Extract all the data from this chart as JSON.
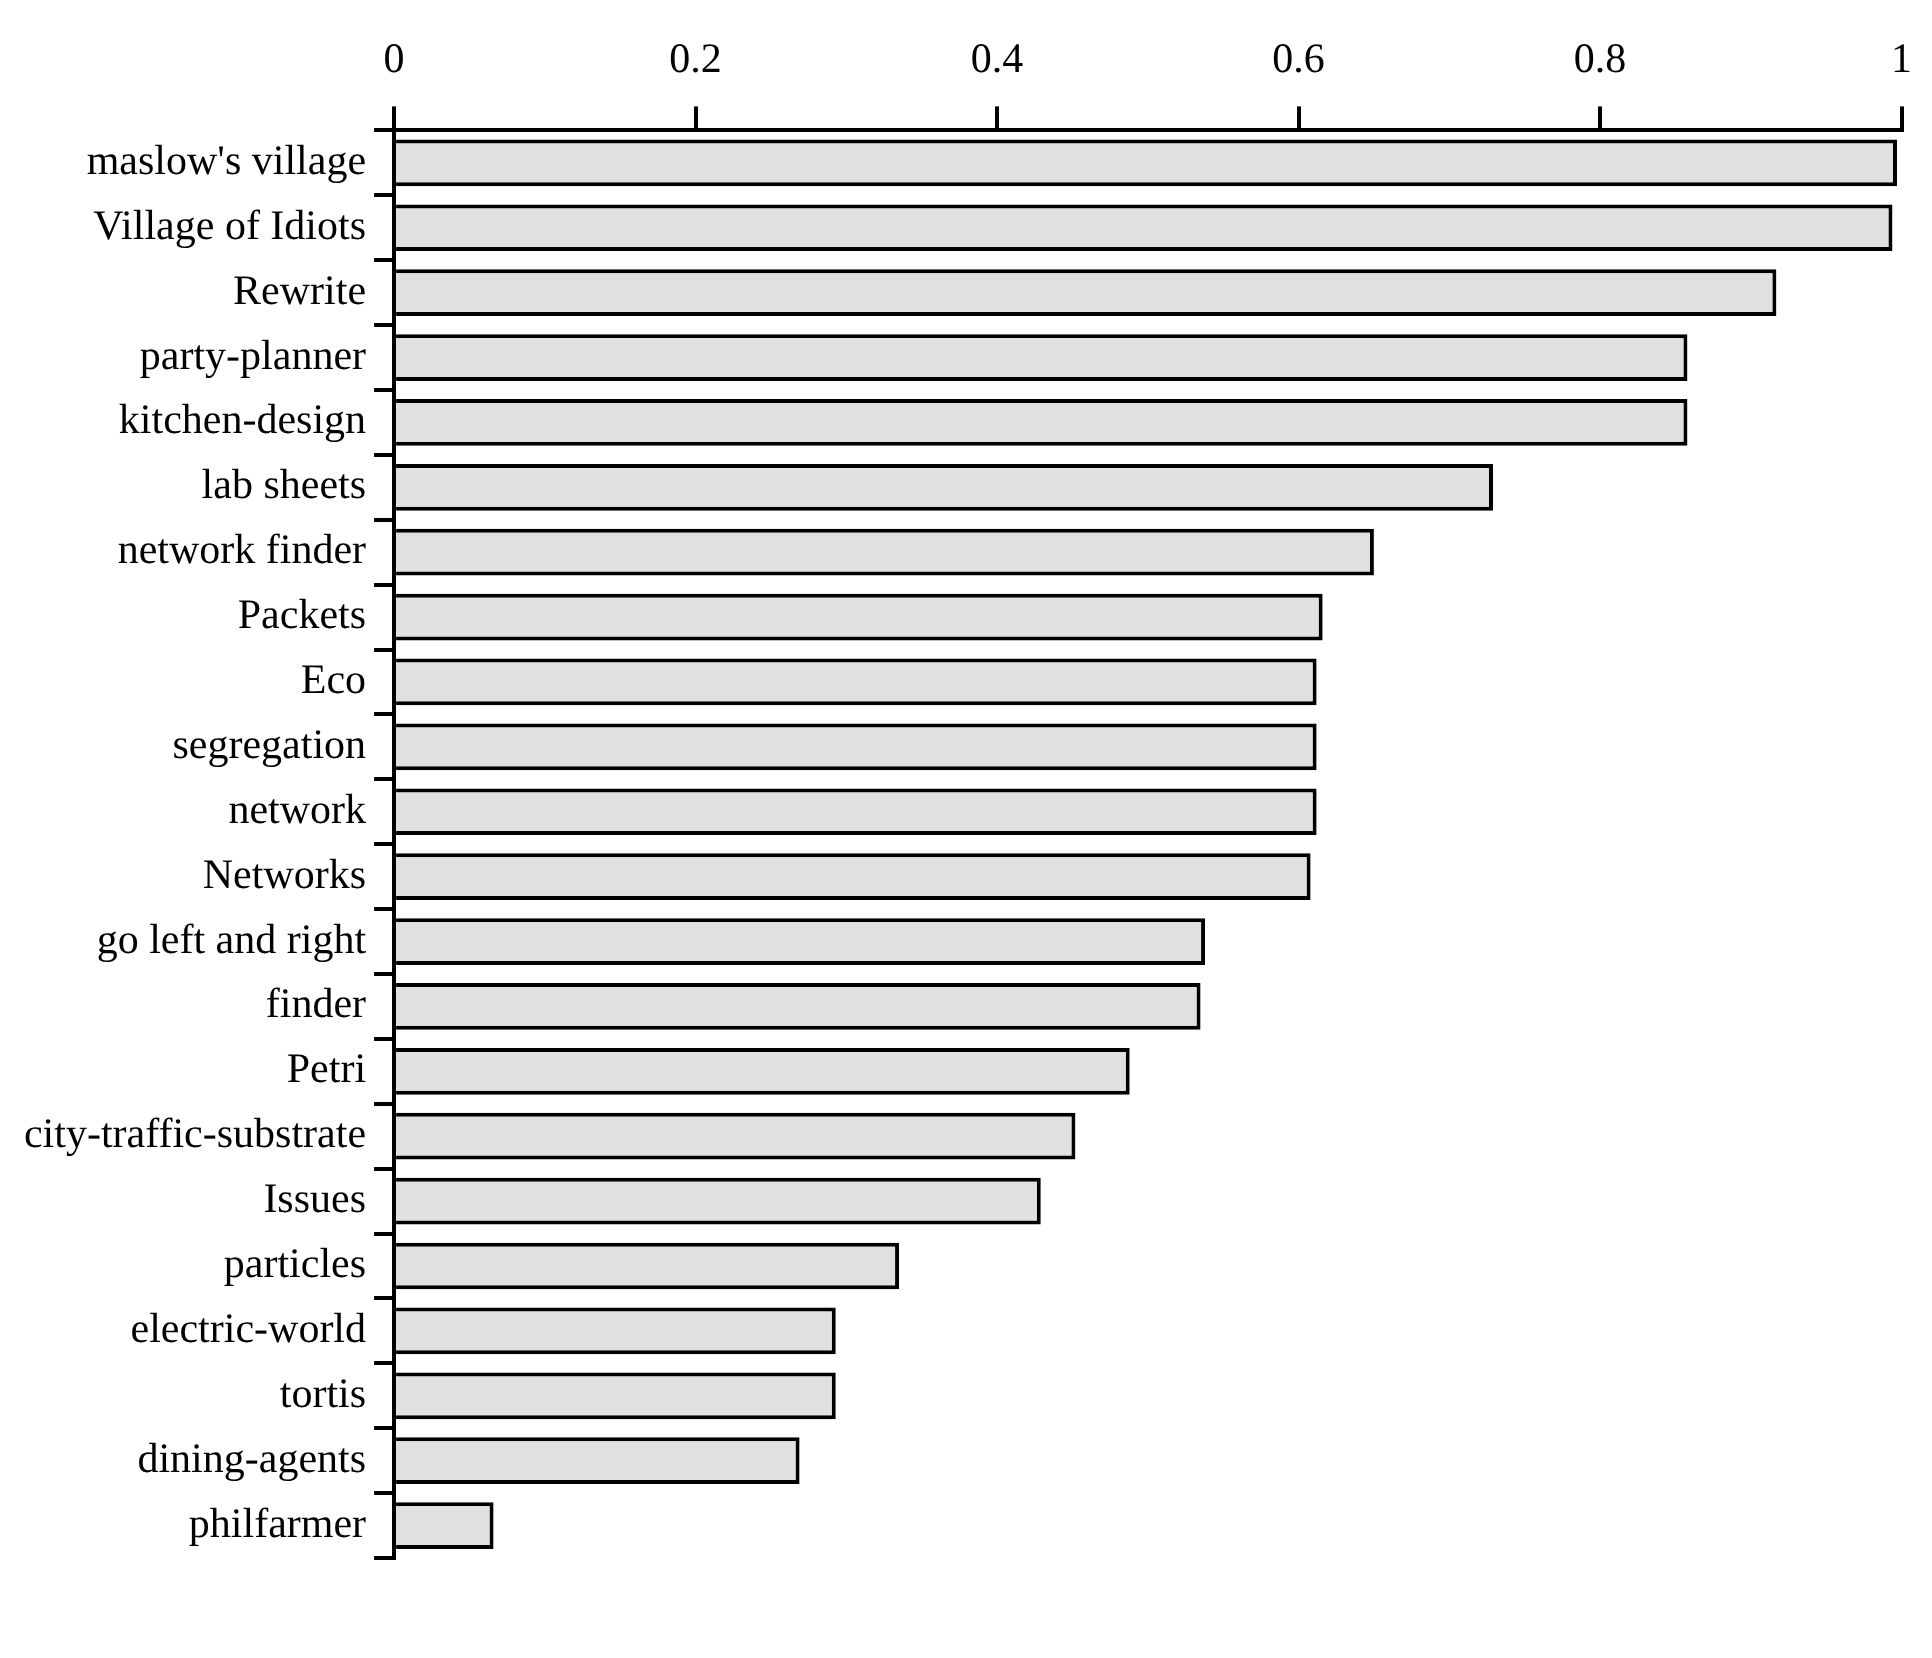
{
  "chart_data": {
    "type": "bar",
    "orientation": "horizontal",
    "categories": [
      "maslow's village",
      "Village of Idiots",
      "Rewrite",
      "party-planner",
      "kitchen-design",
      "lab sheets",
      "network finder",
      "Packets",
      "Eco",
      "segregation",
      "network",
      "Networks",
      "go left and right",
      "finder",
      "Petri",
      "city-traffic-substrate",
      "Issues",
      "particles",
      "electric-world",
      "tortis",
      "dining-agents",
      "philfarmer"
    ],
    "values": [
      0.997,
      0.994,
      0.917,
      0.858,
      0.858,
      0.729,
      0.65,
      0.616,
      0.612,
      0.612,
      0.612,
      0.608,
      0.538,
      0.535,
      0.488,
      0.452,
      0.429,
      0.335,
      0.293,
      0.293,
      0.269,
      0.066
    ],
    "color": "#e0e0e0",
    "xlim": [
      0,
      1
    ],
    "xticks": [
      0,
      0.2,
      0.4,
      0.6,
      0.8,
      1
    ],
    "grid": false,
    "legend": false
  }
}
